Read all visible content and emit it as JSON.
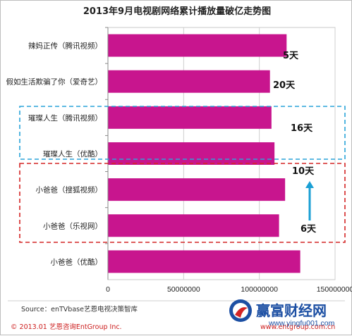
{
  "chart_data": {
    "type": "bar",
    "orientation": "horizontal",
    "title": "2013年9月电视剧网络累计播放量破亿走势图",
    "categories": [
      "辣妈正传（腾讯视频）",
      "假如生活欺骗了你（爱奇艺）",
      "璀璨人生（腾讯视频）",
      "璀璨人生（优酷）",
      "小爸爸（搜狐视频）",
      "小爸爸（乐视网）",
      "小爸爸（优酷）"
    ],
    "values": [
      118000000,
      107000000,
      108000000,
      110000000,
      117000000,
      113000000,
      127000000
    ],
    "xlim": [
      0,
      150000000
    ],
    "xticks": [
      "0",
      "50000000",
      "100000000",
      "150000000"
    ],
    "grid": true,
    "bar_color": "#c8158e",
    "annotations": [
      "5天",
      "20天",
      "16天",
      "10天",
      "6天"
    ]
  },
  "footer": {
    "source": "Source：enTVbase艺恩电视决策智库",
    "copyright": "© 2013.01  艺恩咨询EntGroup Inc.",
    "website": "www.entgroup.com.cn"
  },
  "watermark": {
    "brand": "赢富财经网",
    "url": "www.yingfu001.com"
  },
  "colors": {
    "bar": "#c8158e",
    "blue_box": "#2aa4d8",
    "red_box": "#d42525",
    "arrow": "#1a9fd4",
    "brand_blue": "#1c4fa3"
  }
}
